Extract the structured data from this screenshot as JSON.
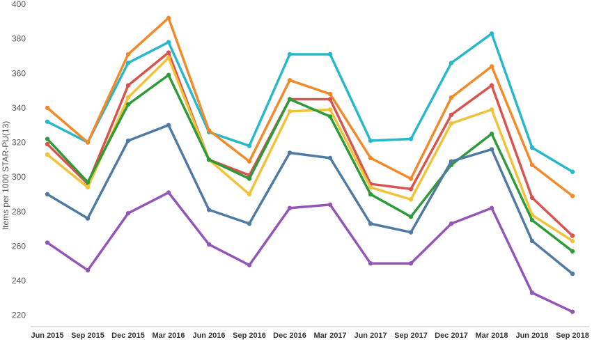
{
  "chart_data": {
    "type": "line",
    "title": "",
    "xlabel": "",
    "ylabel": "Items per 1000 STAR-PU(13)",
    "ylim": [
      213,
      400
    ],
    "yticks": [
      220,
      240,
      260,
      280,
      300,
      320,
      340,
      360,
      380,
      400
    ],
    "grid": false,
    "legend": "none",
    "categories": [
      "Jun 2015",
      "Sep 2015",
      "Dec 2015",
      "Mar 2016",
      "Jun 2016",
      "Sep 2016",
      "Dec 2016",
      "Mar 2017",
      "Jun 2017",
      "Sep 2017",
      "Dec 2017",
      "Mar 2018",
      "Jun 2018",
      "Sep 2018"
    ],
    "series": [
      {
        "color": "#27b8c9",
        "values": [
          332,
          320,
          366,
          378,
          326,
          318,
          371,
          371,
          321,
          322,
          366,
          383,
          317,
          303
        ]
      },
      {
        "color": "#f28a2a",
        "values": [
          340,
          320,
          371,
          392,
          327,
          309,
          356,
          348,
          311,
          299,
          346,
          364,
          307,
          289
        ]
      },
      {
        "color": "#d9534f",
        "values": [
          319,
          296,
          353,
          372,
          310,
          301,
          345,
          345,
          296,
          293,
          336,
          353,
          288,
          266
        ]
      },
      {
        "color": "#f2c238",
        "values": [
          313,
          294,
          346,
          369,
          310,
          290,
          338,
          339,
          294,
          287,
          331,
          339,
          278,
          263
        ]
      },
      {
        "color": "#2e9b3a",
        "values": [
          322,
          297,
          342,
          359,
          310,
          299,
          345,
          335,
          290,
          277,
          307,
          325,
          275,
          257
        ]
      },
      {
        "color": "#4f7aa3",
        "values": [
          290,
          276,
          321,
          330,
          281,
          273,
          314,
          311,
          273,
          268,
          309,
          316,
          263,
          244
        ]
      },
      {
        "color": "#9355b8",
        "values": [
          262,
          246,
          279,
          291,
          261,
          249,
          282,
          284,
          250,
          250,
          273,
          282,
          233,
          222
        ]
      }
    ]
  }
}
